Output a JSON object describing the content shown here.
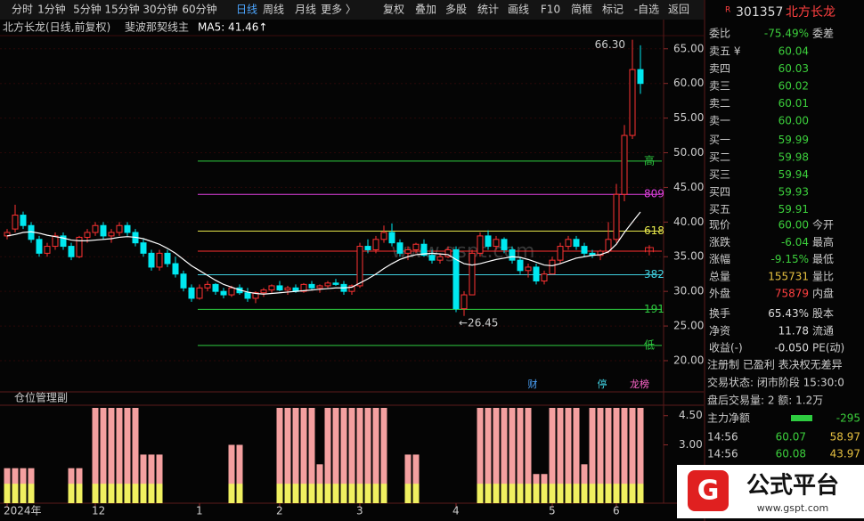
{
  "toolbar": [
    "分时",
    "1分钟",
    "5分钟",
    "15分钟",
    "30分钟",
    "60分钟",
    "日线",
    "周线",
    "月线",
    "更多 〉",
    "复权",
    "叠加",
    "多股",
    "统计",
    "画线",
    "F10",
    "简框",
    "标记",
    "-自选",
    "返回"
  ],
  "chart_data": [
    {
      "type": "candlestick",
      "title": "北方长龙(日线,前复权)",
      "subtitle": "斐波那契线主",
      "ma_label": "MA5: 41.46↑",
      "ylim": [
        15.5,
        66.9
      ],
      "yticks": [
        {
          "value": 20,
          "label": "20.00"
        },
        {
          "value": 25,
          "label": "25.00"
        },
        {
          "value": 30,
          "label": "30.00"
        },
        {
          "value": 35,
          "label": "35.00"
        },
        {
          "value": 40,
          "label": "40.00"
        },
        {
          "value": 45,
          "label": "45.00"
        },
        {
          "value": 50,
          "label": "50.00"
        },
        {
          "value": 55,
          "label": "55.00"
        },
        {
          "value": 60,
          "label": "60.00"
        },
        {
          "value": 65,
          "label": "65.00"
        }
      ],
      "categories": [
        "2024年",
        null,
        null,
        null,
        null,
        null,
        null,
        null,
        null,
        null,
        null,
        "12",
        null,
        null,
        null,
        null,
        null,
        null,
        null,
        null,
        null,
        null,
        null,
        null,
        "1",
        null,
        null,
        null,
        null,
        null,
        null,
        null,
        null,
        null,
        "2",
        null,
        null,
        null,
        null,
        null,
        null,
        null,
        null,
        null,
        "3",
        null,
        null,
        null,
        null,
        null,
        null,
        null,
        null,
        null,
        null,
        null,
        "4",
        null,
        null,
        null,
        null,
        null,
        null,
        null,
        null,
        null,
        null,
        null,
        "5",
        null,
        null,
        null,
        null,
        null,
        null,
        null,
        "6",
        null,
        null,
        null
      ],
      "candles": [
        [
          38,
          39,
          37.5,
          38.5
        ],
        [
          39,
          42.5,
          38.5,
          41
        ],
        [
          41,
          41.5,
          39,
          39.5
        ],
        [
          39.5,
          40,
          37,
          37.5
        ],
        [
          37.5,
          38,
          35,
          35.5
        ],
        [
          35.5,
          37,
          35,
          36.5
        ],
        [
          36.5,
          38.5,
          36,
          38
        ],
        [
          38,
          38.5,
          36,
          36.5
        ],
        [
          36.5,
          37,
          34.5,
          35
        ],
        [
          35,
          38,
          34.8,
          37.8
        ],
        [
          37.8,
          39,
          37,
          38.5
        ],
        [
          38.5,
          40,
          38,
          39.5
        ],
        [
          39.5,
          40,
          37.5,
          38
        ],
        [
          38,
          39,
          37,
          38.5
        ],
        [
          38.5,
          40,
          38,
          39.5
        ],
        [
          39.5,
          40,
          38,
          38.5
        ],
        [
          38.5,
          39,
          36.5,
          37
        ],
        [
          37,
          37.5,
          35,
          35.5
        ],
        [
          35.5,
          36,
          33,
          33.5
        ],
        [
          33.5,
          36,
          33,
          35.5
        ],
        [
          35.5,
          36,
          33.5,
          34
        ],
        [
          34,
          35,
          32,
          32.5
        ],
        [
          32.5,
          33,
          30,
          30.5
        ],
        [
          30.5,
          31,
          28.5,
          29
        ],
        [
          29,
          31,
          28.8,
          30.5
        ],
        [
          30.5,
          31.5,
          30,
          31
        ],
        [
          31,
          31.2,
          29.5,
          30
        ],
        [
          30,
          30.5,
          29,
          29.5
        ],
        [
          29.5,
          30.8,
          29.2,
          30.5
        ],
        [
          30.5,
          31,
          29.5,
          29.8
        ],
        [
          29.8,
          30.5,
          28.5,
          29
        ],
        [
          29,
          30,
          28.3,
          29.8
        ],
        [
          29.8,
          30.5,
          29.2,
          30.2
        ],
        [
          30.2,
          31,
          29.8,
          30.8
        ],
        [
          30.8,
          31.5,
          30,
          30.2
        ],
        [
          30.2,
          30.8,
          29.5,
          30.5
        ],
        [
          30.5,
          31,
          29.8,
          30
        ],
        [
          30,
          31.2,
          29.8,
          31
        ],
        [
          31,
          31.5,
          30.3,
          30.5
        ],
        [
          30.5,
          31,
          29.8,
          30.8
        ],
        [
          30.8,
          31.5,
          30.5,
          31.2
        ],
        [
          31.2,
          31.8,
          30.8,
          31
        ],
        [
          31,
          31.5,
          29.5,
          30
        ],
        [
          30,
          31,
          29.5,
          30.8
        ],
        [
          30.8,
          37,
          30.5,
          36.5
        ],
        [
          36.5,
          37.5,
          35.5,
          36
        ],
        [
          36,
          38,
          35.5,
          37.5
        ],
        [
          37.5,
          39.5,
          37,
          38.5
        ],
        [
          38.5,
          39.8,
          36.5,
          37
        ],
        [
          37,
          37.5,
          35,
          35.5
        ],
        [
          35.5,
          36.5,
          34.5,
          36
        ],
        [
          36,
          37,
          35.5,
          36.8
        ],
        [
          36.8,
          37.5,
          35,
          35.2
        ],
        [
          35.2,
          36,
          34,
          34.5
        ],
        [
          34.5,
          35.5,
          34,
          35
        ],
        [
          35,
          36.5,
          34.8,
          36
        ],
        [
          36,
          36.5,
          27,
          27.5
        ],
        [
          27.5,
          30,
          26.45,
          29.5
        ],
        [
          29.5,
          36,
          29.5,
          35.5
        ],
        [
          35.5,
          38.5,
          35,
          38
        ],
        [
          38,
          38.8,
          36,
          36.5
        ],
        [
          36.5,
          38,
          36,
          37.5
        ],
        [
          37.5,
          37.8,
          35.5,
          36
        ],
        [
          36,
          36.5,
          34,
          34.5
        ],
        [
          34.5,
          35,
          32.5,
          33
        ],
        [
          33,
          34,
          32,
          33.5
        ],
        [
          33.5,
          34,
          31,
          31.5
        ],
        [
          31.5,
          33,
          31,
          32.5
        ],
        [
          32.5,
          35,
          32.5,
          34.5
        ],
        [
          34.5,
          37,
          34,
          36.5
        ],
        [
          36.5,
          38,
          36,
          37.5
        ],
        [
          37.5,
          38,
          36,
          36.5
        ],
        [
          36.5,
          37,
          35,
          35.5
        ],
        [
          35.5,
          36,
          34.8,
          35.2
        ],
        [
          35.2,
          36,
          34.5,
          35.8
        ],
        [
          35.8,
          40,
          35.5,
          37.5
        ],
        [
          37.5,
          45.5,
          37,
          44
        ],
        [
          44,
          54,
          43,
          52.5
        ],
        [
          52.5,
          66.3,
          52,
          62
        ],
        [
          62,
          65.5,
          58.5,
          60
        ]
      ],
      "ma_values": [
        38,
        38.2,
        38.5,
        38.6,
        38.4,
        38.1,
        37.9,
        37.7,
        37.4,
        37.3,
        37.3,
        37.4,
        37.5,
        37.6,
        37.8,
        37.9,
        37.8,
        37.6,
        37.2,
        36.8,
        36.2,
        35.5,
        34.6,
        33.7,
        33,
        32.3,
        31.6,
        31,
        30.6,
        30.2,
        29.9,
        29.7,
        29.6,
        29.7,
        29.8,
        29.9,
        30,
        30.1,
        30.2,
        30.3,
        30.4,
        30.5,
        30.5,
        30.6,
        31.2,
        31.8,
        32.5,
        33.3,
        34,
        34.6,
        35,
        35.3,
        35.4,
        35.5,
        35.4,
        35.3,
        34.6,
        34,
        33.8,
        34,
        34.3,
        34.6,
        34.8,
        35,
        34.9,
        34.6,
        34.2,
        33.8,
        33.7,
        34,
        34.4,
        34.8,
        35,
        35.2,
        35.3,
        35.7,
        36.8,
        38.5,
        40,
        41.46
      ],
      "fib_lines": [
        {
          "label": "高",
          "value": 48.8,
          "color": "#2ecc40"
        },
        {
          "label": "809",
          "value": 44,
          "color": "#e040e0"
        },
        {
          "label": "618",
          "value": 38.7,
          "color": "#e6e64a"
        },
        {
          "label": "中",
          "value": 35.8,
          "color": "#ff3030"
        },
        {
          "label": "382",
          "value": 32.4,
          "color": "#40d0e0"
        },
        {
          "label": "191",
          "value": 27.4,
          "color": "#2ecc40"
        },
        {
          "label": "低",
          "value": 22.2,
          "color": "#2ecc40"
        }
      ],
      "high_label": "66.30",
      "low_label": "←26.45",
      "markers": [
        {
          "text": "财",
          "color": "#4da6ff"
        },
        {
          "text": "停",
          "color": "#40d0e0"
        },
        {
          "text": "龙榜",
          "color": "#ff66cc"
        }
      ]
    },
    {
      "type": "bar",
      "title": "仓位管理副",
      "ylim": [
        0,
        4.9
      ],
      "yticks": [
        {
          "value": 3,
          "label": "3.00"
        },
        {
          "value": 4.5,
          "label": "4.50"
        }
      ],
      "series": [
        {
          "color": "#f4a0a0",
          "values": [
            1.8,
            1.8,
            1.8,
            1.8,
            0,
            0,
            0,
            0,
            1.8,
            1.8,
            0,
            4.9,
            4.9,
            4.9,
            4.9,
            4.9,
            4.9,
            2.5,
            2.5,
            2.5,
            0,
            0,
            0,
            0,
            0,
            0,
            0,
            0,
            3,
            3,
            0,
            0,
            0,
            0,
            4.9,
            4.9,
            4.9,
            4.9,
            4.9,
            2,
            4.9,
            4.9,
            4.9,
            4.9,
            4.9,
            4.9,
            4.9,
            4.9,
            0,
            0,
            2.5,
            2.5,
            0,
            0,
            0,
            0,
            0,
            0,
            0,
            4.9,
            4.9,
            4.9,
            4.9,
            4.9,
            4.9,
            4.9,
            1.5,
            1.5,
            4.9,
            4.9,
            4.9,
            4.9,
            2,
            4.9,
            4.9,
            4.9,
            4.9,
            4.9,
            4.9,
            4.9
          ]
        },
        {
          "color": "#f0f060",
          "values": [
            1,
            1,
            1,
            1,
            0,
            0,
            0,
            0,
            1,
            1,
            0,
            1,
            1,
            1,
            1,
            1,
            1,
            1,
            1,
            1,
            0,
            0,
            0,
            0,
            0,
            0,
            0,
            0,
            1,
            1,
            0,
            0,
            0,
            0,
            1,
            1,
            1,
            1,
            1,
            1,
            1,
            1,
            1,
            1,
            1,
            1,
            1,
            1,
            0,
            0,
            1,
            1,
            0,
            0,
            0,
            0,
            0,
            0,
            0,
            1,
            1,
            1,
            1,
            1,
            1,
            1,
            1,
            1,
            1,
            1,
            1,
            1,
            1,
            1,
            1,
            1,
            1,
            1,
            1,
            1
          ]
        }
      ]
    }
  ],
  "watermark": "www.gspt.com",
  "quote": {
    "flag": "R",
    "code": "301357",
    "name": "北方长龙",
    "ratio": {
      "label": "委比",
      "value": "-75.49%",
      "label2": "委差",
      "color": "#3cd03c"
    },
    "book": [
      {
        "label": "卖五 ¥",
        "value": "60.04",
        "color": "#3cd03c"
      },
      {
        "label": "卖四",
        "value": "60.03",
        "color": "#3cd03c"
      },
      {
        "label": "卖三",
        "value": "60.02",
        "color": "#3cd03c"
      },
      {
        "label": "卖二",
        "value": "60.01",
        "color": "#3cd03c"
      },
      {
        "label": "卖一",
        "value": "60.00",
        "color": "#3cd03c"
      },
      {
        "label": "买一",
        "value": "59.99",
        "color": "#3cd03c"
      },
      {
        "label": "买二",
        "value": "59.98",
        "color": "#3cd03c"
      },
      {
        "label": "买三",
        "value": "59.94",
        "color": "#3cd03c"
      },
      {
        "label": "买四",
        "value": "59.93",
        "color": "#3cd03c"
      },
      {
        "label": "买五",
        "value": "59.91",
        "color": "#3cd03c"
      }
    ],
    "stats": [
      {
        "label": "现价",
        "value": "60.00",
        "label2": "今开",
        "color": "#3cd03c"
      },
      {
        "label": "涨跌",
        "value": "-6.04",
        "label2": "最高",
        "color": "#3cd03c"
      },
      {
        "label": "涨幅",
        "value": "-9.15%",
        "label2": "最低",
        "color": "#3cd03c"
      },
      {
        "label": "总量",
        "value": "155731",
        "label2": "量比",
        "color": "#e6c040"
      },
      {
        "label": "外盘",
        "value": "75879",
        "label2": "内盘",
        "color": "#ff4040"
      },
      {
        "label": "换手",
        "value": "65.43%",
        "label2": "股本",
        "color": "#dddddd"
      },
      {
        "label": "净资",
        "value": "11.78",
        "label2": "流通",
        "color": "#dddddd"
      },
      {
        "label": "收益(-)",
        "value": "-0.050",
        "label2": "PE(动)",
        "color": "#dddddd"
      }
    ],
    "lines": [
      "注册制 已盈利 表决权无差异",
      "交易状态: 闭市阶段 15:30:0",
      "盘后交易量: 2 额: 1.2万"
    ],
    "flow": {
      "label": "主力净额",
      "value": "-295"
    },
    "ticks": [
      [
        "14:56",
        "60.07",
        "58.97"
      ],
      [
        "14:56",
        "60.08",
        "43.97"
      ]
    ]
  },
  "logo": {
    "title": "公式平台",
    "url": "www.gspt.com"
  }
}
